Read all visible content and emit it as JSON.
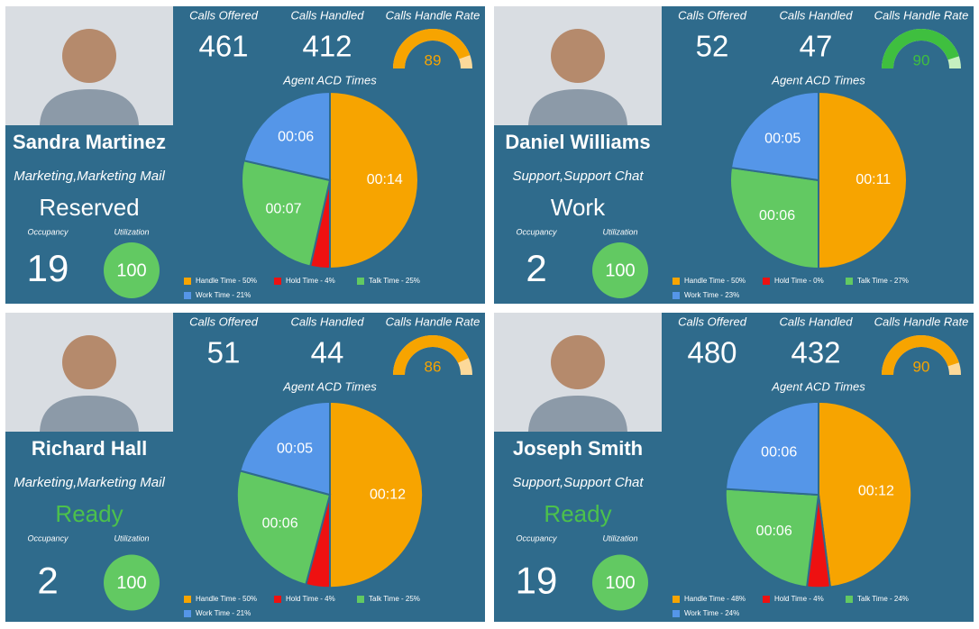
{
  "cards": [
    {
      "name": "Sandra Martinez",
      "department": "Marketing,Marketing Mail",
      "status": "Reserved",
      "status_color": "#ffffff",
      "occupancy_label": "Occupancy",
      "occupancy": 19,
      "utilization_label": "Utilization",
      "utilization": 100,
      "calls_offered_label": "Calls Offered",
      "calls_offered": 461,
      "calls_handled_label": "Calls Handled",
      "calls_handled": 412,
      "handle_rate_label": "Calls Handle Rate",
      "handle_rate": 89,
      "gauge_lim": [
        0,
        100
      ],
      "gauge_color": "#f7a400",
      "gauge_track": "#fcd99a",
      "acd": {
        "type": "pie",
        "title": "Agent ACD Times",
        "categories": [
          "Handle Time - 50%",
          "Hold Time - 4%",
          "Talk Time - 25%",
          "Work Time - 21%"
        ],
        "values": [
          14,
          1,
          7,
          6
        ],
        "value_labels": [
          "00:14",
          null,
          "00:07",
          "00:06"
        ],
        "colors": [
          "#f7a400",
          "#ee1111",
          "#62c962",
          "#5596e8"
        ]
      }
    },
    {
      "name": "Daniel Williams",
      "department": "Support,Support Chat",
      "status": "Work",
      "status_color": "#ffffff",
      "occupancy_label": "Occupancy",
      "occupancy": 2,
      "utilization_label": "Utilization",
      "utilization": 100,
      "calls_offered_label": "Calls Offered",
      "calls_offered": 52,
      "calls_handled_label": "Calls Handled",
      "calls_handled": 47,
      "handle_rate_label": "Calls Handle Rate",
      "handle_rate": 90,
      "gauge_lim": [
        0,
        100
      ],
      "gauge_color": "#3fbf3f",
      "gauge_track": "#c6f0c0",
      "acd": {
        "type": "pie",
        "title": "Agent ACD Times",
        "categories": [
          "Handle Time - 50%",
          "Hold Time - 0%",
          "Talk Time - 27%",
          "Work Time - 23%"
        ],
        "values": [
          11,
          0,
          6,
          5
        ],
        "value_labels": [
          "00:11",
          null,
          "00:06",
          "00:05"
        ],
        "colors": [
          "#f7a400",
          "#ee1111",
          "#62c962",
          "#5596e8"
        ]
      }
    },
    {
      "name": "Richard Hall",
      "department": "Marketing,Marketing Mail",
      "status": "Ready",
      "status_color": "#4cc14c",
      "occupancy_label": "Occupancy",
      "occupancy": 2,
      "utilization_label": "Utilization",
      "utilization": 100,
      "calls_offered_label": "Calls Offered",
      "calls_offered": 51,
      "calls_handled_label": "Calls Handled",
      "calls_handled": 44,
      "handle_rate_label": "Calls Handle Rate",
      "handle_rate": 86,
      "gauge_lim": [
        0,
        100
      ],
      "gauge_color": "#f7a400",
      "gauge_track": "#fcd99a",
      "acd": {
        "type": "pie",
        "title": "Agent ACD Times",
        "categories": [
          "Handle Time - 50%",
          "Hold Time - 4%",
          "Talk Time - 25%",
          "Work Time - 21%"
        ],
        "values": [
          12,
          1,
          6,
          5
        ],
        "value_labels": [
          "00:12",
          null,
          "00:06",
          "00:05"
        ],
        "colors": [
          "#f7a400",
          "#ee1111",
          "#62c962",
          "#5596e8"
        ]
      }
    },
    {
      "name": "Joseph Smith",
      "department": "Support,Support Chat",
      "status": "Ready",
      "status_color": "#4cc14c",
      "occupancy_label": "Occupancy",
      "occupancy": 19,
      "utilization_label": "Utilization",
      "utilization": 100,
      "calls_offered_label": "Calls Offered",
      "calls_offered": 480,
      "calls_handled_label": "Calls Handled",
      "calls_handled": 432,
      "handle_rate_label": "Calls Handle Rate",
      "handle_rate": 90,
      "gauge_lim": [
        0,
        100
      ],
      "gauge_color": "#f7a400",
      "gauge_track": "#fcd99a",
      "acd": {
        "type": "pie",
        "title": "Agent ACD Times",
        "categories": [
          "Handle Time - 48%",
          "Hold Time - 4%",
          "Talk Time - 24%",
          "Work Time - 24%"
        ],
        "values": [
          12,
          1,
          6,
          6
        ],
        "value_labels": [
          "00:12",
          null,
          "00:06",
          "00:06"
        ],
        "colors": [
          "#f7a400",
          "#ee1111",
          "#62c962",
          "#5596e8"
        ]
      }
    }
  ]
}
